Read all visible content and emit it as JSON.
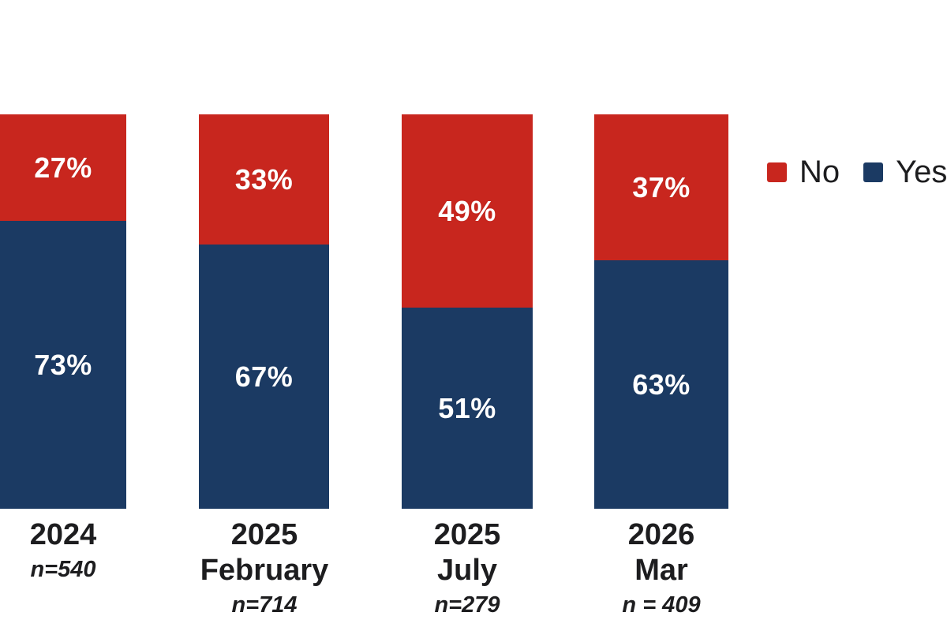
{
  "colors": {
    "no": "#c8261e",
    "yes": "#1b3a63",
    "text": "#1d1d1f",
    "value_text": "#ffffff",
    "background": "#ffffff"
  },
  "chart_data": {
    "type": "bar",
    "stacked": true,
    "orientation": "vertical",
    "unit": "%",
    "ylim": [
      0,
      100
    ],
    "grid": false,
    "axes_shown": false,
    "legend_position": "right",
    "stack_order_top_to_bottom": [
      "No",
      "Yes"
    ],
    "categories": [
      "2024",
      "2025 February",
      "2025 July",
      "2026 Mar"
    ],
    "series": [
      {
        "name": "No",
        "color": "#c8261e",
        "values": [
          27,
          33,
          49,
          37
        ]
      },
      {
        "name": "Yes",
        "color": "#1b3a63",
        "values": [
          73,
          67,
          51,
          63
        ]
      }
    ],
    "bars": [
      {
        "year": "2024",
        "month": "",
        "n_label": "n=540",
        "no_pct": 27,
        "no_label": "27%",
        "yes_pct": 73,
        "yes_label": "73%"
      },
      {
        "year": "2025",
        "month": "February",
        "n_label": "n=714",
        "no_pct": 33,
        "no_label": "33%",
        "yes_pct": 67,
        "yes_label": "67%"
      },
      {
        "year": "2025",
        "month": "July",
        "n_label": "n=279",
        "no_pct": 49,
        "no_label": "49%",
        "yes_pct": 51,
        "yes_label": "51%"
      },
      {
        "year": "2026",
        "month": "Mar",
        "n_label": "n = 409",
        "no_pct": 37,
        "no_label": "37%",
        "yes_pct": 63,
        "yes_label": "63%"
      }
    ],
    "legend": [
      {
        "label": "No",
        "color": "#c8261e"
      },
      {
        "label": "Yes",
        "color": "#1b3a63"
      }
    ]
  }
}
